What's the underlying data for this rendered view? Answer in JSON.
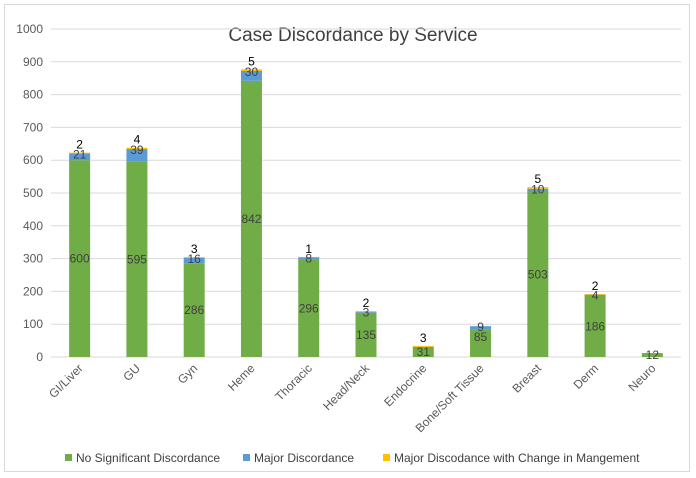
{
  "chart_data": {
    "type": "bar",
    "stacked": true,
    "title": "Case Discordance by Service",
    "xlabel": "",
    "ylabel": "",
    "ylim": [
      0,
      1000
    ],
    "yticks": [
      0,
      100,
      200,
      300,
      400,
      500,
      600,
      700,
      800,
      900,
      1000
    ],
    "grid": true,
    "legend_position": "bottom",
    "categories": [
      "GI/Liver",
      "GU",
      "Gyn",
      "Heme",
      "Thoracic",
      "Head/Neck",
      "Endocrine",
      "Bone/Soft Tissue",
      "Breast",
      "Derm",
      "Neuro"
    ],
    "series": [
      {
        "name": "No Significant Discordance",
        "color": "#70ad47",
        "values": [
          600,
          595,
          286,
          842,
          296,
          135,
          31,
          85,
          503,
          186,
          12
        ]
      },
      {
        "name": "Major Discordance",
        "color": "#5b9bd5",
        "values": [
          21,
          39,
          16,
          30,
          8,
          3,
          null,
          9,
          10,
          4,
          null
        ]
      },
      {
        "name": "Major Discodance with Change in Mangement",
        "color": "#ffc000",
        "values": [
          2,
          4,
          3,
          5,
          1,
          2,
          3,
          null,
          5,
          2,
          null
        ]
      }
    ]
  }
}
